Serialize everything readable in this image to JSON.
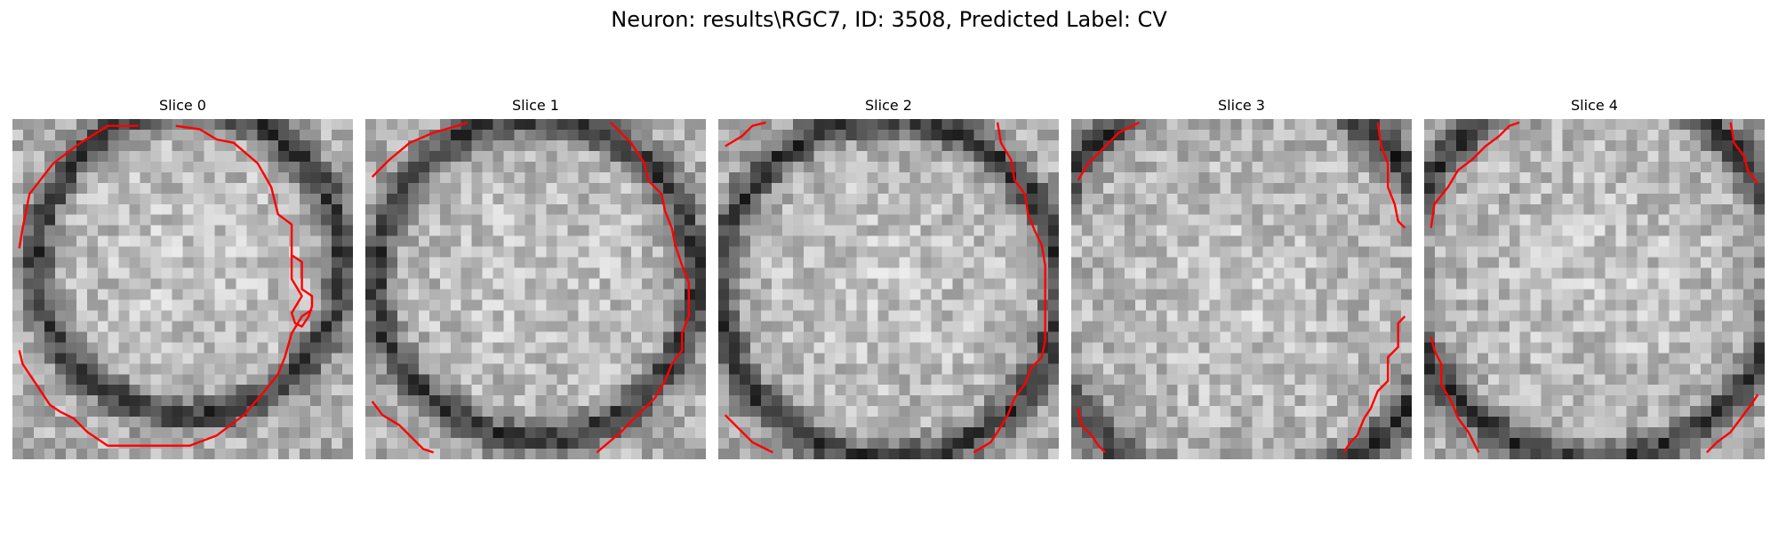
{
  "figure": {
    "title": "Neuron: results\\RGC7, ID: 3508, Predicted Label: CV",
    "contour_color": "#ff0000",
    "grid_size": 32
  },
  "panels": [
    {
      "title": "Slice 0",
      "seed": 11,
      "center": [
        0.52,
        0.42
      ],
      "radius": 0.45,
      "contours": [
        [
          [
            0.02,
            0.38
          ],
          [
            0.03,
            0.32
          ],
          [
            0.05,
            0.22
          ],
          [
            0.12,
            0.13
          ],
          [
            0.2,
            0.07
          ],
          [
            0.28,
            0.02
          ],
          [
            0.37,
            0.02
          ]
        ],
        [
          [
            0.48,
            0.02
          ],
          [
            0.55,
            0.03
          ],
          [
            0.6,
            0.06
          ],
          [
            0.65,
            0.07
          ],
          [
            0.72,
            0.13
          ],
          [
            0.76,
            0.2
          ],
          [
            0.78,
            0.28
          ],
          [
            0.82,
            0.31
          ],
          [
            0.82,
            0.4
          ],
          [
            0.85,
            0.42
          ],
          [
            0.85,
            0.5
          ],
          [
            0.88,
            0.52
          ],
          [
            0.88,
            0.55
          ],
          [
            0.87,
            0.58
          ],
          [
            0.85,
            0.61
          ],
          [
            0.83,
            0.6
          ],
          [
            0.82,
            0.57
          ],
          [
            0.85,
            0.52
          ],
          [
            0.82,
            0.47
          ],
          [
            0.82,
            0.4
          ]
        ],
        [
          [
            0.88,
            0.56
          ],
          [
            0.85,
            0.58
          ],
          [
            0.82,
            0.63
          ],
          [
            0.8,
            0.7
          ],
          [
            0.78,
            0.75
          ],
          [
            0.74,
            0.8
          ],
          [
            0.68,
            0.87
          ],
          [
            0.6,
            0.93
          ],
          [
            0.52,
            0.96
          ],
          [
            0.4,
            0.96
          ],
          [
            0.28,
            0.96
          ],
          [
            0.22,
            0.92
          ],
          [
            0.18,
            0.88
          ],
          [
            0.14,
            0.86
          ],
          [
            0.11,
            0.84
          ],
          [
            0.07,
            0.78
          ],
          [
            0.03,
            0.72
          ],
          [
            0.02,
            0.68
          ]
        ]
      ]
    },
    {
      "title": "Slice 1",
      "seed": 27,
      "center": [
        0.5,
        0.47
      ],
      "radius": 0.47,
      "contours": [
        [
          [
            0.02,
            0.17
          ],
          [
            0.07,
            0.12
          ],
          [
            0.13,
            0.07
          ],
          [
            0.2,
            0.04
          ],
          [
            0.27,
            0.02
          ],
          [
            0.3,
            0.01
          ]
        ],
        [
          [
            0.72,
            0.01
          ],
          [
            0.78,
            0.07
          ],
          [
            0.82,
            0.13
          ],
          [
            0.83,
            0.18
          ],
          [
            0.87,
            0.22
          ],
          [
            0.88,
            0.27
          ],
          [
            0.9,
            0.32
          ],
          [
            0.91,
            0.37
          ],
          [
            0.93,
            0.43
          ],
          [
            0.95,
            0.48
          ],
          [
            0.95,
            0.58
          ],
          [
            0.93,
            0.63
          ],
          [
            0.93,
            0.68
          ],
          [
            0.9,
            0.72
          ],
          [
            0.88,
            0.77
          ],
          [
            0.85,
            0.82
          ],
          [
            0.8,
            0.87
          ],
          [
            0.75,
            0.92
          ],
          [
            0.68,
            0.98
          ]
        ],
        [
          [
            0.02,
            0.83
          ],
          [
            0.05,
            0.87
          ],
          [
            0.1,
            0.9
          ],
          [
            0.13,
            0.93
          ],
          [
            0.17,
            0.97
          ],
          [
            0.2,
            0.98
          ]
        ]
      ]
    },
    {
      "title": "Slice 2",
      "seed": 43,
      "center": [
        0.5,
        0.5
      ],
      "radius": 0.5,
      "contours": [
        [
          [
            0.02,
            0.08
          ],
          [
            0.07,
            0.05
          ],
          [
            0.1,
            0.02
          ],
          [
            0.14,
            0.01
          ]
        ],
        [
          [
            0.82,
            0.01
          ],
          [
            0.83,
            0.07
          ],
          [
            0.86,
            0.12
          ],
          [
            0.87,
            0.18
          ],
          [
            0.9,
            0.22
          ],
          [
            0.91,
            0.28
          ],
          [
            0.93,
            0.33
          ],
          [
            0.95,
            0.37
          ],
          [
            0.96,
            0.43
          ],
          [
            0.96,
            0.6
          ],
          [
            0.96,
            0.65
          ],
          [
            0.95,
            0.7
          ],
          [
            0.92,
            0.73
          ],
          [
            0.9,
            0.78
          ],
          [
            0.87,
            0.82
          ],
          [
            0.85,
            0.87
          ],
          [
            0.82,
            0.92
          ],
          [
            0.8,
            0.95
          ],
          [
            0.75,
            0.98
          ]
        ],
        [
          [
            0.02,
            0.87
          ],
          [
            0.06,
            0.91
          ],
          [
            0.1,
            0.95
          ],
          [
            0.14,
            0.97
          ],
          [
            0.16,
            0.98
          ]
        ]
      ]
    },
    {
      "title": "Slice 3",
      "seed": 59,
      "center": [
        0.5,
        0.5
      ],
      "radius": 0.6,
      "contours": [
        [
          [
            0.02,
            0.18
          ],
          [
            0.05,
            0.13
          ],
          [
            0.1,
            0.08
          ],
          [
            0.14,
            0.04
          ],
          [
            0.18,
            0.02
          ],
          [
            0.2,
            0.01
          ]
        ],
        [
          [
            0.9,
            0.01
          ],
          [
            0.91,
            0.08
          ],
          [
            0.93,
            0.13
          ],
          [
            0.93,
            0.2
          ],
          [
            0.95,
            0.25
          ],
          [
            0.96,
            0.3
          ],
          [
            0.98,
            0.32
          ]
        ],
        [
          [
            0.98,
            0.58
          ],
          [
            0.96,
            0.6
          ],
          [
            0.96,
            0.67
          ],
          [
            0.93,
            0.7
          ],
          [
            0.93,
            0.77
          ],
          [
            0.9,
            0.8
          ],
          [
            0.88,
            0.85
          ],
          [
            0.86,
            0.88
          ],
          [
            0.84,
            0.93
          ],
          [
            0.82,
            0.95
          ],
          [
            0.8,
            0.98
          ]
        ],
        [
          [
            0.02,
            0.85
          ],
          [
            0.03,
            0.9
          ],
          [
            0.06,
            0.93
          ],
          [
            0.08,
            0.96
          ],
          [
            0.1,
            0.98
          ]
        ]
      ]
    },
    {
      "title": "Slice 4",
      "seed": 71,
      "center": [
        0.5,
        0.45
      ],
      "radius": 0.55,
      "contours": [
        [
          [
            0.02,
            0.32
          ],
          [
            0.03,
            0.25
          ],
          [
            0.07,
            0.2
          ],
          [
            0.1,
            0.15
          ],
          [
            0.14,
            0.12
          ],
          [
            0.18,
            0.08
          ],
          [
            0.22,
            0.05
          ],
          [
            0.25,
            0.02
          ],
          [
            0.28,
            0.01
          ]
        ],
        [
          [
            0.9,
            0.01
          ],
          [
            0.91,
            0.07
          ],
          [
            0.94,
            0.11
          ],
          [
            0.95,
            0.15
          ],
          [
            0.98,
            0.19
          ]
        ],
        [
          [
            0.02,
            0.64
          ],
          [
            0.03,
            0.68
          ],
          [
            0.05,
            0.72
          ],
          [
            0.05,
            0.78
          ],
          [
            0.08,
            0.83
          ],
          [
            0.1,
            0.88
          ],
          [
            0.13,
            0.92
          ],
          [
            0.15,
            0.96
          ],
          [
            0.16,
            0.98
          ]
        ],
        [
          [
            0.83,
            0.98
          ],
          [
            0.86,
            0.95
          ],
          [
            0.9,
            0.92
          ],
          [
            0.93,
            0.88
          ],
          [
            0.96,
            0.84
          ],
          [
            0.98,
            0.81
          ]
        ]
      ]
    }
  ]
}
